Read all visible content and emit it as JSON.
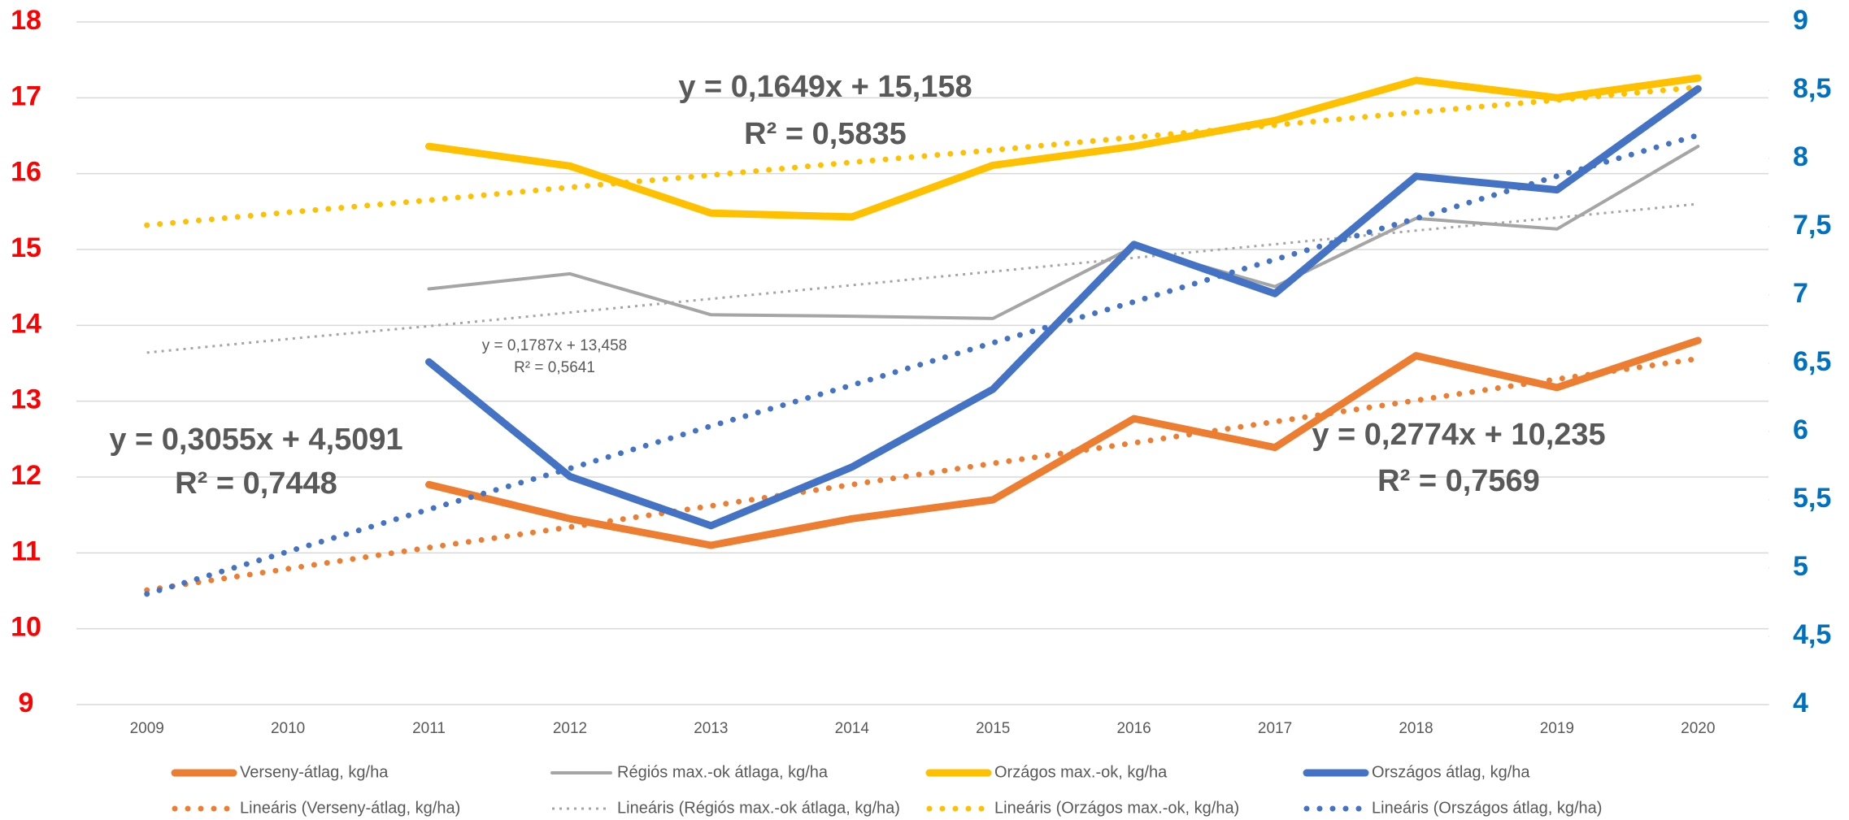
{
  "chart_data": {
    "type": "line",
    "categories": [
      "2009",
      "2010",
      "2011",
      "2012",
      "2013",
      "2014",
      "2015",
      "2016",
      "2017",
      "2018",
      "2019",
      "2020"
    ],
    "ylim": [
      9,
      18
    ],
    "yticks": [
      9,
      10,
      11,
      12,
      13,
      14,
      15,
      16,
      17,
      18
    ],
    "y2lim": [
      4,
      9
    ],
    "y2ticks": [
      4,
      {
        "value": 4.5,
        "label": "4,5"
      },
      5,
      {
        "value": 5.5,
        "label": "5,5"
      },
      6,
      {
        "value": 6.5,
        "label": "6,5"
      },
      7,
      {
        "value": 7.5,
        "label": "7,5"
      },
      8,
      {
        "value": 8.5,
        "label": "8,5"
      },
      9
    ],
    "grid": true,
    "series": [
      {
        "name": "Verseny-átlag, kg/ha",
        "color": "#ed7d31",
        "dash": "solid",
        "values": [
          null,
          null,
          11.9,
          11.45,
          11.1,
          11.45,
          11.7,
          12.77,
          12.39,
          13.6,
          13.18,
          13.8
        ]
      },
      {
        "name": "Régiós max.-ok  átlaga, kg/ha",
        "color": "#a5a5a5",
        "dash": "solid",
        "width": "thin",
        "values": [
          null,
          null,
          14.48,
          14.68,
          14.14,
          14.12,
          14.09,
          15.04,
          14.51,
          15.41,
          15.27,
          16.36
        ]
      },
      {
        "name": "Orzágos max.-ok, kg/ha",
        "color": "#ffc000",
        "dash": "solid",
        "values": [
          null,
          null,
          16.36,
          16.1,
          15.48,
          15.43,
          16.11,
          16.36,
          16.7,
          17.23,
          17.0,
          17.26
        ]
      },
      {
        "name": "Országos átlag, kg/ha",
        "color": "#4472c4",
        "dash": "solid",
        "axis": "y2",
        "values": [
          null,
          null,
          6.51,
          5.67,
          5.31,
          5.74,
          6.31,
          7.37,
          7.01,
          7.87,
          7.77,
          8.51
        ]
      },
      {
        "name": "Lineáris (Verseny-átlag, kg/ha)",
        "color": "#ed7d31",
        "dash": "dotted",
        "values": [
          10.51,
          10.79,
          11.07,
          11.34,
          11.62,
          11.9,
          12.18,
          12.45,
          12.73,
          13.01,
          13.29,
          13.56
        ]
      },
      {
        "name": "Lineáris (Régiós max.-ok  átlaga, kg/ha)",
        "color": "#a5a5a5",
        "dash": "dotted",
        "width": "thin",
        "values": [
          13.64,
          13.82,
          13.99,
          14.17,
          14.35,
          14.53,
          14.71,
          14.89,
          15.07,
          15.25,
          15.42,
          15.6
        ]
      },
      {
        "name": "Lineáris (Orzágos max.-ok, kg/ha)",
        "color": "#ffc000",
        "dash": "dotted",
        "values": [
          15.32,
          15.49,
          15.65,
          15.82,
          15.98,
          16.15,
          16.31,
          16.48,
          16.64,
          16.81,
          16.97,
          17.14
        ]
      },
      {
        "name": "Lineáris (Országos átlag, kg/ha)",
        "color": "#4472c4",
        "dash": "dotted",
        "axis": "y2",
        "values": [
          4.81,
          5.12,
          5.43,
          5.73,
          6.04,
          6.34,
          6.65,
          6.95,
          7.26,
          7.56,
          7.87,
          8.17
        ]
      }
    ],
    "annotations": [
      [
        "y = 0,1649x + 15,158",
        "R² = 0,5835"
      ],
      [
        "y = 0,1787x + 13,458",
        "R² = 0,5641"
      ],
      [
        "y = 0,3055x + 4,5091",
        "R² = 0,7448"
      ],
      [
        "y = 0,2774x + 10,235",
        "R² = 0,7569"
      ]
    ]
  }
}
